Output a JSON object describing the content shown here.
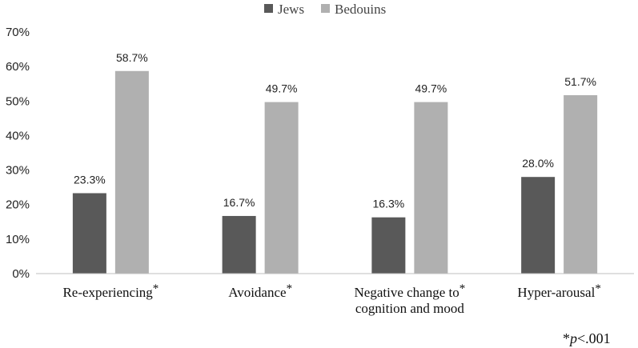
{
  "chart_data": {
    "type": "bar",
    "title": "",
    "xlabel": "",
    "ylabel": "",
    "ylim": [
      0,
      70
    ],
    "yticks": [
      0,
      10,
      20,
      30,
      40,
      50,
      60,
      70
    ],
    "ytick_labels": [
      "0%",
      "10%",
      "20%",
      "30%",
      "40%",
      "50%",
      "60%",
      "70%"
    ],
    "categories": [
      {
        "line1": "Re-experiencing",
        "line2": "",
        "mark": "*"
      },
      {
        "line1": "Avoidance",
        "line2": "",
        "mark": "*"
      },
      {
        "line1": "Negative change to",
        "line2": "cognition and mood",
        "mark": "*"
      },
      {
        "line1": "Hyper-arousal",
        "line2": "",
        "mark": "*"
      }
    ],
    "series": [
      {
        "name": "Jews",
        "color": "#595959",
        "values": [
          23.3,
          16.7,
          16.3,
          28.0
        ],
        "labels": [
          "23.3%",
          "16.7%",
          "16.3%",
          "28.0%"
        ]
      },
      {
        "name": "Bedouins",
        "color": "#b0b0b0",
        "values": [
          58.7,
          49.7,
          49.7,
          51.7
        ],
        "labels": [
          "58.7%",
          "49.7%",
          "49.7%",
          "51.7%"
        ]
      }
    ],
    "legend_position": "top-center",
    "grid": false,
    "footnote": {
      "mark": "*",
      "var": "p",
      "rest": "<.001"
    }
  }
}
